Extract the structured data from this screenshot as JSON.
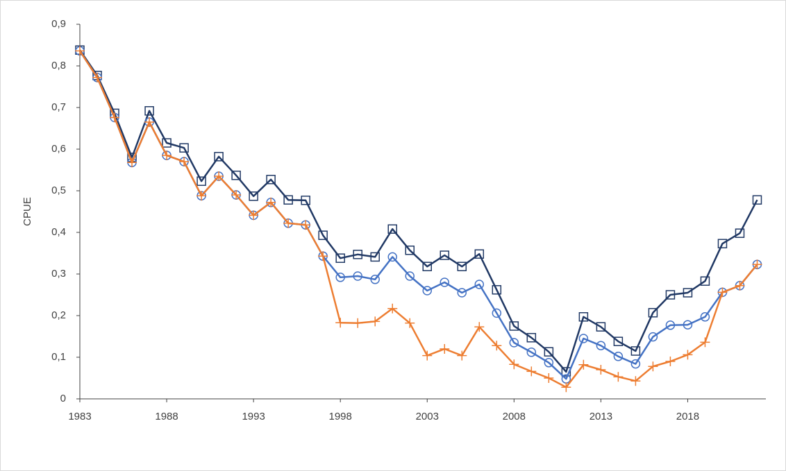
{
  "chart_data": {
    "type": "line",
    "y_label": "CPUE",
    "x": [
      1983,
      1984,
      1985,
      1986,
      1987,
      1988,
      1989,
      1990,
      1991,
      1992,
      1993,
      1994,
      1995,
      1996,
      1997,
      1998,
      1999,
      2000,
      2001,
      2002,
      2003,
      2004,
      2005,
      2006,
      2007,
      2008,
      2009,
      2010,
      2011,
      2012,
      2013,
      2014,
      2015,
      2016,
      2017,
      2018,
      2019,
      2020,
      2021,
      2022
    ],
    "xlim": [
      1983,
      2022.5
    ],
    "xticks": [
      1983,
      1988,
      1993,
      1998,
      2003,
      2008,
      2013,
      2018
    ],
    "ylim": [
      0,
      0.9
    ],
    "yticks": [
      0,
      {
        "value": 0.1,
        "label": "0,1"
      },
      {
        "value": 0.2,
        "label": "0,2"
      },
      {
        "value": 0.3,
        "label": "0,3"
      },
      {
        "value": 0.4,
        "label": "0,4"
      },
      {
        "value": 0.5,
        "label": "0,5"
      },
      {
        "value": 0.6,
        "label": "0,6"
      },
      {
        "value": 0.7,
        "label": "0,7"
      },
      {
        "value": 0.8,
        "label": "0,8"
      },
      {
        "value": 0.9,
        "label": "0,9"
      }
    ],
    "grid": false,
    "series": [
      {
        "color": "#203864",
        "marker": "square",
        "values": [
          0.838,
          0.777,
          0.686,
          0.58,
          0.692,
          0.615,
          0.603,
          0.523,
          0.582,
          0.537,
          0.487,
          0.527,
          0.478,
          0.477,
          0.393,
          0.338,
          0.347,
          0.341,
          0.408,
          0.357,
          0.318,
          0.345,
          0.318,
          0.348,
          0.262,
          0.175,
          0.147,
          0.113,
          0.065,
          0.197,
          0.173,
          0.138,
          0.115,
          0.207,
          0.25,
          0.255,
          0.283,
          0.373,
          0.398,
          0.478
        ]
      },
      {
        "color": "#4472c4",
        "marker": "circle",
        "values": [
          0.836,
          0.772,
          0.676,
          0.568,
          0.665,
          0.585,
          0.57,
          0.488,
          0.535,
          0.49,
          0.441,
          0.472,
          0.422,
          0.418,
          0.343,
          0.292,
          0.295,
          0.287,
          0.341,
          0.295,
          0.26,
          0.28,
          0.255,
          0.275,
          0.206,
          0.135,
          0.112,
          0.087,
          0.048,
          0.145,
          0.128,
          0.102,
          0.084,
          0.149,
          0.177,
          0.178,
          0.197,
          0.256,
          0.272,
          0.323
        ]
      },
      {
        "color": "#ed7d31",
        "marker": "plus",
        "values": [
          0.836,
          0.772,
          0.676,
          0.568,
          0.665,
          0.585,
          0.57,
          0.488,
          0.535,
          0.49,
          0.441,
          0.472,
          0.422,
          0.418,
          0.343,
          0.183,
          0.182,
          0.186,
          0.217,
          0.182,
          0.104,
          0.12,
          0.104,
          0.173,
          0.128,
          0.083,
          0.066,
          0.05,
          0.028,
          0.082,
          0.07,
          0.053,
          0.043,
          0.078,
          0.09,
          0.106,
          0.136,
          0.256,
          0.272,
          0.323
        ]
      }
    ]
  }
}
